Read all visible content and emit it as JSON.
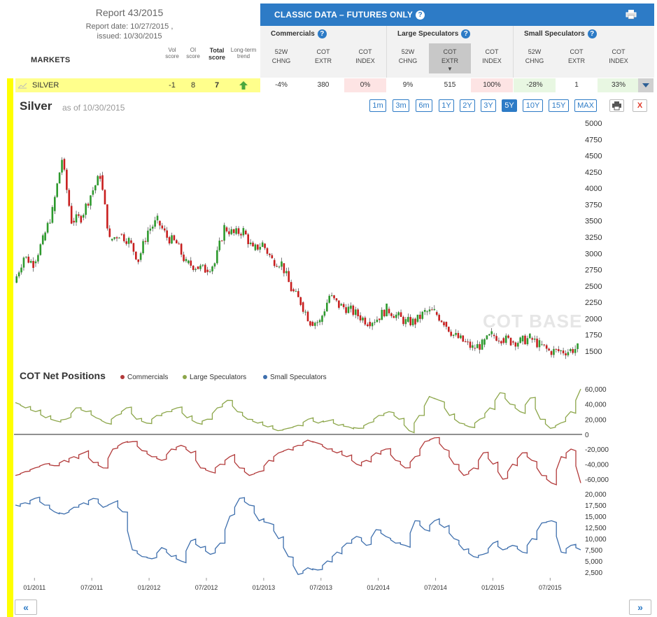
{
  "report": {
    "title": "Report 43/2015",
    "report_date": "Report date: 10/27/2015 ,",
    "issued": "issued: 10/30/2015"
  },
  "markets_header": "MARKETS",
  "score_headers": {
    "vol": [
      "Vol",
      "score"
    ],
    "oi": [
      "OI",
      "score"
    ],
    "total": [
      "Total",
      "score"
    ],
    "trend": [
      "Long-term",
      "trend"
    ]
  },
  "classic_title": "CLASSIC DATA – FUTURES ONLY",
  "groups": [
    {
      "name": "Commercials",
      "cols": [
        [
          "52W",
          "CHNG"
        ],
        [
          "COT",
          "EXTR"
        ],
        [
          "COT",
          "INDEX"
        ]
      ]
    },
    {
      "name": "Large Speculators",
      "cols": [
        [
          "52W",
          "CHNG"
        ],
        [
          "COT",
          "EXTR"
        ],
        [
          "COT",
          "INDEX"
        ]
      ]
    },
    {
      "name": "Small Speculators",
      "cols": [
        [
          "52W",
          "CHNG"
        ],
        [
          "COT",
          "EXTR"
        ],
        [
          "COT",
          "INDEX"
        ]
      ]
    }
  ],
  "row": {
    "market": "SILVER",
    "vol": "-1",
    "oi": "8",
    "total": "7",
    "values": [
      "-4%",
      "380",
      "0%",
      "9%",
      "515",
      "100%",
      "-28%",
      "1",
      "33%"
    ]
  },
  "colors": {
    "blue": "#2d7bc6",
    "commercials": "#b23a3a",
    "large": "#8ca64a",
    "small": "#3e6fad",
    "up": "#2e9a2e",
    "down": "#c81e1e"
  },
  "chart_title": "Silver",
  "chart_date": "as of 10/30/2015",
  "ranges": [
    "1m",
    "3m",
    "6m",
    "1Y",
    "2Y",
    "3Y",
    "5Y",
    "10Y",
    "15Y",
    "MAX"
  ],
  "active_range": "5Y",
  "cot_title": "COT Net Positions",
  "legend": [
    "Commercials",
    "Large Speculators",
    "Small Speculators"
  ],
  "nav": {
    "prev": "«",
    "next": "»"
  },
  "chart_data": {
    "type": "line",
    "price_axis": {
      "ticks": [
        5000,
        4750,
        4500,
        4250,
        4000,
        3750,
        3500,
        3250,
        3000,
        2750,
        2500,
        2250,
        2000,
        1750,
        1500
      ],
      "ylim": [
        1400,
        5000
      ]
    },
    "cot_axis_1": {
      "ticks": [
        "60,000",
        "40,000",
        "20,000",
        "0",
        "-20,000",
        "-40,000",
        "-60,000"
      ]
    },
    "cot_axis_2": {
      "ticks": [
        "20,000",
        "17,500",
        "15,000",
        "12,500",
        "10,000",
        "7,500",
        "5,000",
        "2,500"
      ]
    },
    "x_labels": [
      "01/2011",
      "07/2011",
      "01/2012",
      "07/2012",
      "01/2013",
      "07/2013",
      "01/2014",
      "07/2014",
      "01/2015",
      "07/2015"
    ],
    "price_series": [
      [
        "2010-11",
        2550
      ],
      [
        "2010-12",
        2950
      ],
      [
        "2011-01",
        2850
      ],
      [
        "2011-02",
        3200
      ],
      [
        "2011-03",
        3650
      ],
      [
        "2011-04",
        4450
      ],
      [
        "2011-05",
        3500
      ],
      [
        "2011-06",
        3550
      ],
      [
        "2011-07",
        3900
      ],
      [
        "2011-08",
        4200
      ],
      [
        "2011-09",
        3200
      ],
      [
        "2011-10",
        3300
      ],
      [
        "2011-11",
        3200
      ],
      [
        "2011-12",
        2900
      ],
      [
        "2012-01",
        3350
      ],
      [
        "2012-02",
        3500
      ],
      [
        "2012-03",
        3250
      ],
      [
        "2012-04",
        3150
      ],
      [
        "2012-05",
        2850
      ],
      [
        "2012-06",
        2800
      ],
      [
        "2012-07",
        2750
      ],
      [
        "2012-08",
        2850
      ],
      [
        "2012-09",
        3400
      ],
      [
        "2012-10",
        3300
      ],
      [
        "2012-11",
        3350
      ],
      [
        "2012-12",
        3050
      ],
      [
        "2013-01",
        3150
      ],
      [
        "2013-02",
        2900
      ],
      [
        "2013-03",
        2850
      ],
      [
        "2013-04",
        2450
      ],
      [
        "2013-05",
        2250
      ],
      [
        "2013-06",
        1950
      ],
      [
        "2013-07",
        1950
      ],
      [
        "2013-08",
        2350
      ],
      [
        "2013-09",
        2200
      ],
      [
        "2013-10",
        2150
      ],
      [
        "2013-11",
        2050
      ],
      [
        "2013-12",
        1950
      ],
      [
        "2014-01",
        2000
      ],
      [
        "2014-02",
        2150
      ],
      [
        "2014-03",
        2050
      ],
      [
        "2014-04",
        1950
      ],
      [
        "2014-05",
        1950
      ],
      [
        "2014-06",
        2100
      ],
      [
        "2014-07",
        2100
      ],
      [
        "2014-08",
        1950
      ],
      [
        "2014-09",
        1750
      ],
      [
        "2014-10",
        1650
      ],
      [
        "2014-11",
        1550
      ],
      [
        "2014-12",
        1600
      ],
      [
        "2015-01",
        1750
      ],
      [
        "2015-02",
        1700
      ],
      [
        "2015-03",
        1650
      ],
      [
        "2015-04",
        1650
      ],
      [
        "2015-05",
        1700
      ],
      [
        "2015-06",
        1600
      ],
      [
        "2015-07",
        1500
      ],
      [
        "2015-08",
        1500
      ],
      [
        "2015-09",
        1500
      ],
      [
        "2015-10",
        1550
      ]
    ],
    "series": [
      {
        "name": "Large Speculators",
        "values": [
          42000,
          35000,
          30000,
          22000,
          18000,
          20000,
          35000,
          30000,
          22000,
          15000,
          25000,
          35000,
          20000,
          15000,
          25000,
          30000,
          35000,
          22000,
          15000,
          20000,
          35000,
          45000,
          30000,
          20000,
          15000,
          10000,
          5000,
          8000,
          12000,
          20000,
          15000,
          18000,
          12000,
          10000,
          8000,
          15000,
          25000,
          30000,
          20000,
          5000,
          25000,
          50000,
          45000,
          25000,
          15000,
          10000,
          20000,
          35000,
          55000,
          40000,
          30000,
          48000,
          20000,
          8000,
          15000,
          30000,
          60000
        ]
      },
      {
        "name": "Commercials",
        "values": [
          -55000,
          -50000,
          -45000,
          -40000,
          -42000,
          -35000,
          -30000,
          -25000,
          -38000,
          -45000,
          -20000,
          -12000,
          -10000,
          -22000,
          -30000,
          -35000,
          -20000,
          -15000,
          -25000,
          -45000,
          -50000,
          -40000,
          -30000,
          -45000,
          -55000,
          -50000,
          -35000,
          -25000,
          -20000,
          -15000,
          -8000,
          -12000,
          -20000,
          -25000,
          -30000,
          -40000,
          -35000,
          -25000,
          -20000,
          -35000,
          -45000,
          -30000,
          -10000,
          -5000,
          -20000,
          -40000,
          -55000,
          -45000,
          -25000,
          -40000,
          -60000,
          -40000,
          -25000,
          -35000,
          -55000,
          -65000,
          -30000,
          -20000,
          -65000
        ]
      },
      {
        "name": "Small Speculators",
        "values": [
          17500,
          18000,
          19000,
          17500,
          16000,
          15500,
          17000,
          18000,
          19000,
          17000,
          18000,
          16000,
          7500,
          6000,
          5500,
          8000,
          6000,
          5000,
          9500,
          8000,
          6500,
          9000,
          15000,
          19000,
          17500,
          14000,
          13500,
          10000,
          6000,
          2000,
          3500,
          3000,
          5000,
          7000,
          9000,
          10500,
          8500,
          12000,
          10500,
          9000,
          8500,
          14000,
          12000,
          14000,
          12500,
          10000,
          7500,
          6000,
          6500,
          9000,
          7500,
          8500,
          7000,
          10000,
          13500,
          14000,
          7000,
          8500,
          7500
        ]
      }
    ]
  }
}
